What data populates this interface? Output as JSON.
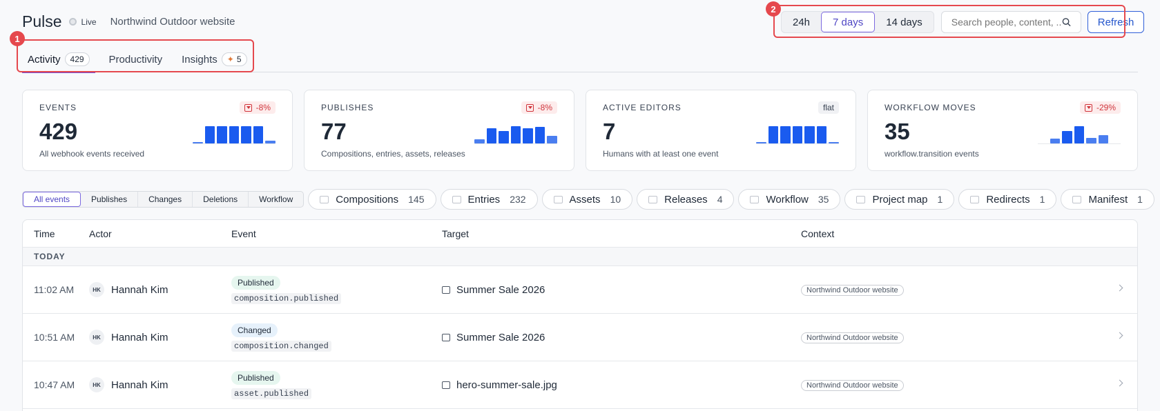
{
  "header": {
    "title": "Pulse",
    "live_label": "Live",
    "site_name": "Northwind Outdoor website"
  },
  "tabs": [
    {
      "label": "Activity",
      "count": "429",
      "active": true
    },
    {
      "label": "Productivity"
    },
    {
      "label": "Insights",
      "count": "5",
      "icon": "sparkle-icon"
    }
  ],
  "controls": {
    "ranges": [
      "24h",
      "7 days",
      "14 days"
    ],
    "active_range": "7 days",
    "search_placeholder": "Search people, content, ...",
    "refresh_label": "Refresh"
  },
  "annotations": [
    "1",
    "2"
  ],
  "stats": [
    {
      "label": "EVENTS",
      "value": "429",
      "desc": "All webhook events received",
      "badge": "-8%",
      "trend": "down",
      "bars": [
        0.05,
        0.85,
        0.85,
        0.85,
        0.85,
        0.85,
        0.15
      ]
    },
    {
      "label": "PUBLISHES",
      "value": "77",
      "desc": "Compositions, entries, assets, releases",
      "badge": "-8%",
      "trend": "down",
      "bars": [
        0.2,
        0.72,
        0.6,
        0.82,
        0.72,
        0.8,
        0.38
      ]
    },
    {
      "label": "ACTIVE EDITORS",
      "value": "7",
      "desc": "Humans with at least one event",
      "badge": "flat",
      "trend": "flat",
      "bars": [
        0.05,
        0.85,
        0.85,
        0.85,
        0.85,
        0.85,
        0.05
      ]
    },
    {
      "label": "WORKFLOW MOVES",
      "value": "35",
      "desc": "workflow.transition events",
      "badge": "-29%",
      "trend": "down",
      "bars": [
        0.0,
        0.25,
        0.6,
        0.82,
        0.28,
        0.4,
        0.0
      ]
    }
  ],
  "filters": {
    "segments": [
      "All events",
      "Publishes",
      "Changes",
      "Deletions",
      "Workflow"
    ],
    "active_segment": "All events",
    "chips": [
      {
        "label": "Compositions",
        "count": "145"
      },
      {
        "label": "Entries",
        "count": "232"
      },
      {
        "label": "Assets",
        "count": "10"
      },
      {
        "label": "Releases",
        "count": "4"
      },
      {
        "label": "Workflow",
        "count": "35"
      },
      {
        "label": "Project map",
        "count": "1"
      },
      {
        "label": "Redirects",
        "count": "1"
      },
      {
        "label": "Manifest",
        "count": "1"
      }
    ]
  },
  "table": {
    "columns": [
      "Time",
      "Actor",
      "Event",
      "Target",
      "Context"
    ],
    "group_label": "TODAY",
    "rows": [
      {
        "time": "11:02 AM",
        "initials": "HK",
        "actor": "Hannah Kim",
        "event_label": "Published",
        "event_type": "published",
        "event_code": "composition.published",
        "target": "Summer Sale 2026",
        "context": "Northwind Outdoor website"
      },
      {
        "time": "10:51 AM",
        "initials": "HK",
        "actor": "Hannah Kim",
        "event_label": "Changed",
        "event_type": "changed",
        "event_code": "composition.changed",
        "target": "Summer Sale 2026",
        "context": "Northwind Outdoor website"
      },
      {
        "time": "10:47 AM",
        "initials": "HK",
        "actor": "Hannah Kim",
        "event_label": "Published",
        "event_type": "published",
        "event_code": "asset.published",
        "target": "hero-summer-sale.jpg",
        "context": "Northwind Outdoor website"
      }
    ]
  }
}
